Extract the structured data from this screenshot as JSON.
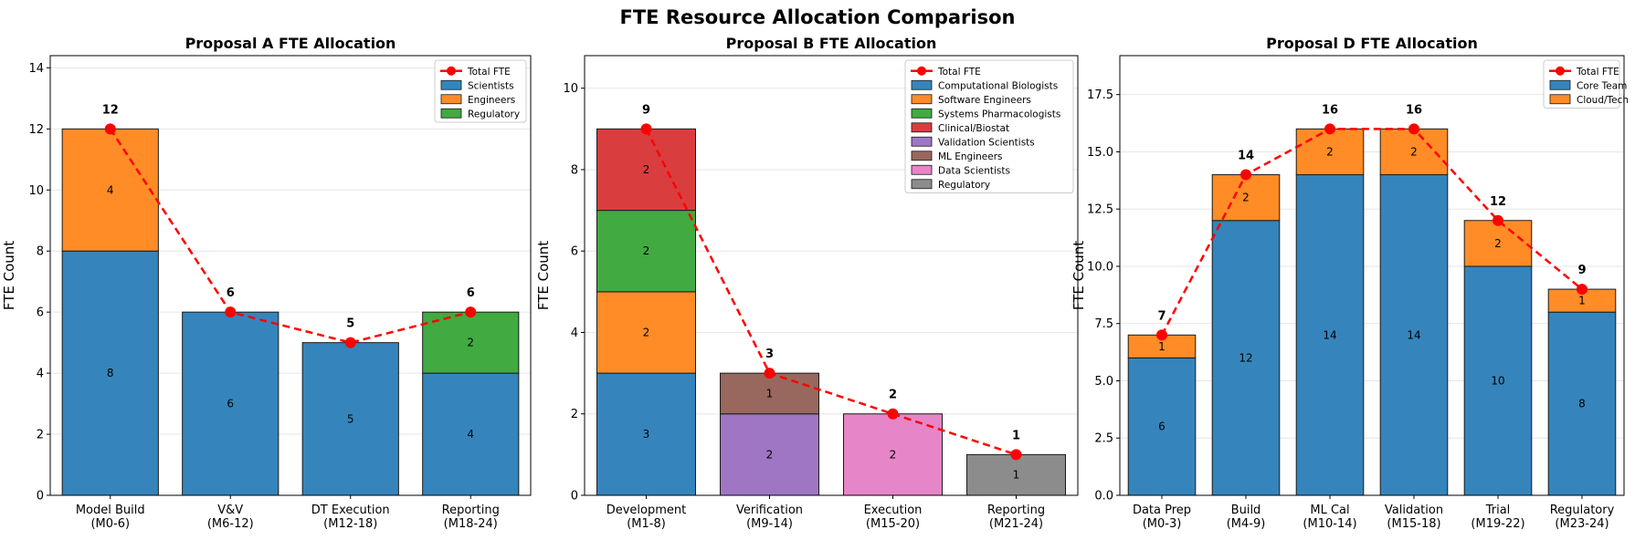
{
  "suptitle": "FTE Resource Allocation Comparison",
  "chart_data": [
    {
      "type": "bar",
      "stacked": true,
      "title": "Proposal A FTE Allocation",
      "ylabel": "FTE Count",
      "xlabel": "",
      "ylim": [
        0,
        14.4
      ],
      "yticks": [
        "0",
        "2",
        "4",
        "6",
        "8",
        "10",
        "12",
        "14"
      ],
      "categories": [
        "Model Build\n(M0-6)",
        "V&V\n(M6-12)",
        "DT Execution\n(M12-18)",
        "Reporting\n(M18-24)"
      ],
      "series": [
        {
          "name": "Scientists",
          "color": "#1f77b4",
          "values": [
            8,
            6,
            5,
            4
          ]
        },
        {
          "name": "Engineers",
          "color": "#ff7f0e",
          "values": [
            4,
            0,
            0,
            0
          ]
        },
        {
          "name": "Regulatory",
          "color": "#2ca02c",
          "values": [
            0,
            0,
            0,
            2
          ]
        }
      ],
      "line": {
        "name": "Total FTE",
        "color": "#ff0000",
        "values": [
          12,
          6,
          5,
          6
        ]
      },
      "grid": "y",
      "legend": "top-right"
    },
    {
      "type": "bar",
      "stacked": true,
      "title": "Proposal B FTE Allocation",
      "ylabel": "FTE Count",
      "xlabel": "",
      "ylim": [
        0,
        10.8
      ],
      "yticks": [
        "0",
        "2",
        "4",
        "6",
        "8",
        "10"
      ],
      "categories": [
        "Development\n(M1-8)",
        "Verification\n(M9-14)",
        "Execution\n(M15-20)",
        "Reporting\n(M21-24)"
      ],
      "series": [
        {
          "name": "Computational Biologists",
          "color": "#1f77b4",
          "values": [
            3,
            0,
            0,
            0
          ]
        },
        {
          "name": "Software Engineers",
          "color": "#ff7f0e",
          "values": [
            2,
            0,
            0,
            0
          ]
        },
        {
          "name": "Systems Pharmacologists",
          "color": "#2ca02c",
          "values": [
            2,
            0,
            0,
            0
          ]
        },
        {
          "name": "Clinical/Biostat",
          "color": "#d62728",
          "values": [
            2,
            0,
            0,
            0
          ]
        },
        {
          "name": "Validation Scientists",
          "color": "#9467bd",
          "values": [
            0,
            2,
            0,
            0
          ]
        },
        {
          "name": "ML Engineers",
          "color": "#8c564b",
          "values": [
            0,
            1,
            0,
            0
          ]
        },
        {
          "name": "Data Scientists",
          "color": "#e377c2",
          "values": [
            0,
            0,
            2,
            0
          ]
        },
        {
          "name": "Regulatory",
          "color": "#7f7f7f",
          "values": [
            0,
            0,
            0,
            1
          ]
        }
      ],
      "line": {
        "name": "Total FTE",
        "color": "#ff0000",
        "values": [
          9,
          3,
          2,
          1
        ]
      },
      "grid": "y",
      "legend": "top-right"
    },
    {
      "type": "bar",
      "stacked": true,
      "title": "Proposal D FTE Allocation",
      "ylabel": "FTE Count",
      "xlabel": "",
      "ylim": [
        0,
        19.2
      ],
      "yticks": [
        "0.0",
        "2.5",
        "5.0",
        "7.5",
        "10.0",
        "12.5",
        "15.0",
        "17.5"
      ],
      "categories": [
        "Data Prep\n(M0-3)",
        "Build\n(M4-9)",
        "ML Cal\n(M10-14)",
        "Validation\n(M15-18)",
        "Trial\n(M19-22)",
        "Regulatory\n(M23-24)"
      ],
      "series": [
        {
          "name": "Core Team",
          "color": "#1f77b4",
          "values": [
            6,
            12,
            14,
            14,
            10,
            8
          ]
        },
        {
          "name": "Cloud/Tech",
          "color": "#ff7f0e",
          "values": [
            1,
            2,
            2,
            2,
            2,
            1
          ]
        }
      ],
      "line": {
        "name": "Total FTE",
        "color": "#ff0000",
        "values": [
          7,
          14,
          16,
          16,
          12,
          9
        ]
      },
      "grid": "y",
      "legend": "top-right"
    }
  ]
}
